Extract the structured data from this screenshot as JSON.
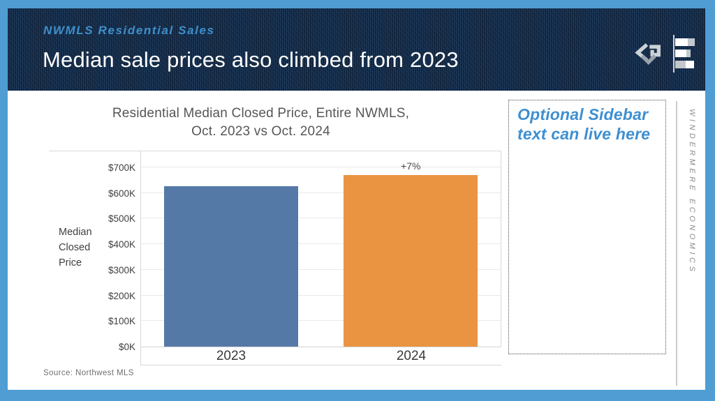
{
  "slide": {
    "frame_color": "#4f9dd3",
    "header": {
      "eyebrow": "NWMLS Residential Sales",
      "title": "Median sale prices also climbed from 2023",
      "background_color": "#152840",
      "eyebrow_color": "#3e8fcb",
      "title_color": "#ffffff"
    },
    "chart_header": {
      "line1": "Residential Median Closed Price, Entire NWMLS,",
      "line2": "Oct. 2023 vs Oct. 2024"
    },
    "sidebar": {
      "placeholder_text": "Optional Sidebar text can live here",
      "text_color": "#3e8fd0",
      "vertical_label": "WINDERMERE ECONOMICS"
    },
    "source": "Source: Northwest MLS"
  },
  "chart_data": {
    "type": "bar",
    "title": "Residential Median Closed Price, Entire NWMLS, Oct. 2023 vs Oct. 2024",
    "categories": [
      "2023",
      "2024"
    ],
    "values": [
      625,
      670
    ],
    "value_unit": "thousand USD",
    "series_colors": [
      "#5579a7",
      "#ea9441"
    ],
    "annotations": [
      {
        "category": "2024",
        "label": "+7%"
      }
    ],
    "ylabel": "Median Closed Price",
    "yticks": [
      0,
      100,
      200,
      300,
      400,
      500,
      600,
      700
    ],
    "ytick_labels": [
      "$0K",
      "$100K",
      "$200K",
      "$300K",
      "$400K",
      "$500K",
      "$600K",
      "$700K"
    ],
    "ylim": [
      0,
      765
    ],
    "grid": true,
    "legend": "none"
  }
}
